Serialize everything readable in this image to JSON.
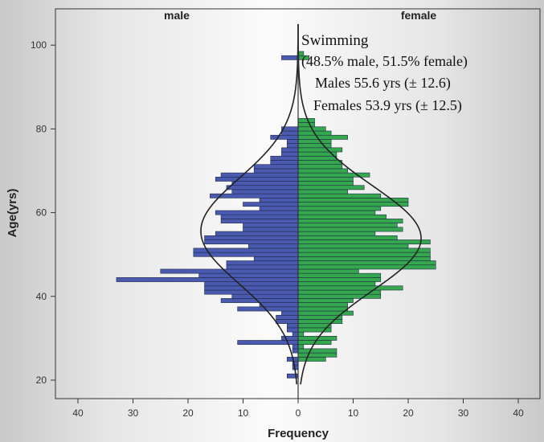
{
  "chart_data": {
    "type": "bar",
    "orientation": "population-pyramid",
    "panels": [
      "male",
      "female"
    ],
    "xlabel": "Frequency",
    "ylabel": "Age(yrs)",
    "xlim": [
      -45,
      45
    ],
    "ylim": [
      15,
      105
    ],
    "xticks": [
      40,
      30,
      20,
      10,
      0,
      10,
      20,
      30,
      40
    ],
    "yticks": [
      20,
      40,
      60,
      80,
      100
    ],
    "bin_width": 1,
    "annotation": {
      "title": "Swimming",
      "subtitle": "(48.5% male, 51.5% female)",
      "males_line": "Males 55.6 yrs (± 12.6)",
      "females_line": "Females 53.9 yrs (± 12.5)"
    },
    "series": [
      {
        "name": "male",
        "color": "#4a5ab0",
        "ages": [
          21,
          23,
          24,
          25,
          27,
          28,
          29,
          30,
          31,
          32,
          33,
          34,
          35,
          36,
          37,
          38,
          39,
          40,
          41,
          42,
          43,
          44,
          45,
          46,
          47,
          48,
          49,
          50,
          51,
          52,
          53,
          54,
          55,
          56,
          57,
          58,
          59,
          60,
          61,
          62,
          63,
          64,
          65,
          66,
          67,
          68,
          69,
          70,
          71,
          72,
          73,
          74,
          75,
          76,
          77,
          78,
          79,
          80,
          81,
          82,
          83,
          84,
          97
        ],
        "values": [
          2,
          1,
          1,
          2,
          1,
          1,
          11,
          3,
          1,
          2,
          2,
          4,
          4,
          3,
          11,
          7,
          14,
          12,
          17,
          17,
          17,
          33,
          18,
          25,
          13,
          13,
          8,
          19,
          19,
          9,
          17,
          17,
          15,
          10,
          10,
          14,
          14,
          15,
          7,
          10,
          7,
          16,
          12,
          13,
          12,
          15,
          14,
          8,
          8,
          5,
          5,
          3,
          3,
          2,
          2,
          5,
          3,
          3,
          0,
          0,
          0,
          0,
          3
        ],
        "normal_mean": 55.6,
        "normal_sd": 12.6
      },
      {
        "name": "female",
        "color": "#35a84f",
        "ages": [
          25,
          26,
          27,
          28,
          29,
          30,
          31,
          32,
          33,
          34,
          35,
          36,
          37,
          38,
          39,
          40,
          41,
          42,
          43,
          44,
          45,
          46,
          47,
          48,
          49,
          50,
          51,
          52,
          53,
          54,
          55,
          56,
          57,
          58,
          59,
          60,
          61,
          62,
          63,
          64,
          65,
          66,
          67,
          68,
          69,
          70,
          71,
          72,
          73,
          74,
          75,
          76,
          77,
          78,
          79,
          80,
          81,
          82,
          83,
          84,
          85,
          86,
          87,
          88,
          89,
          90,
          91,
          92,
          93,
          94,
          95,
          96,
          97,
          98
        ],
        "values": [
          5,
          7,
          7,
          1,
          6,
          7,
          1,
          6,
          6,
          8,
          8,
          10,
          9,
          9,
          10,
          15,
          15,
          19,
          14,
          15,
          15,
          11,
          25,
          25,
          24,
          24,
          24,
          20,
          24,
          18,
          14,
          19,
          18,
          19,
          16,
          14,
          15,
          20,
          20,
          15,
          9,
          12,
          10,
          10,
          13,
          9,
          8,
          8,
          7,
          7,
          8,
          6,
          6,
          9,
          6,
          5,
          3,
          3,
          0,
          0,
          0,
          0,
          0,
          0,
          0,
          0,
          0,
          0,
          0,
          0,
          0,
          0,
          2,
          1
        ],
        "normal_mean": 53.9,
        "normal_sd": 12.5
      }
    ]
  }
}
